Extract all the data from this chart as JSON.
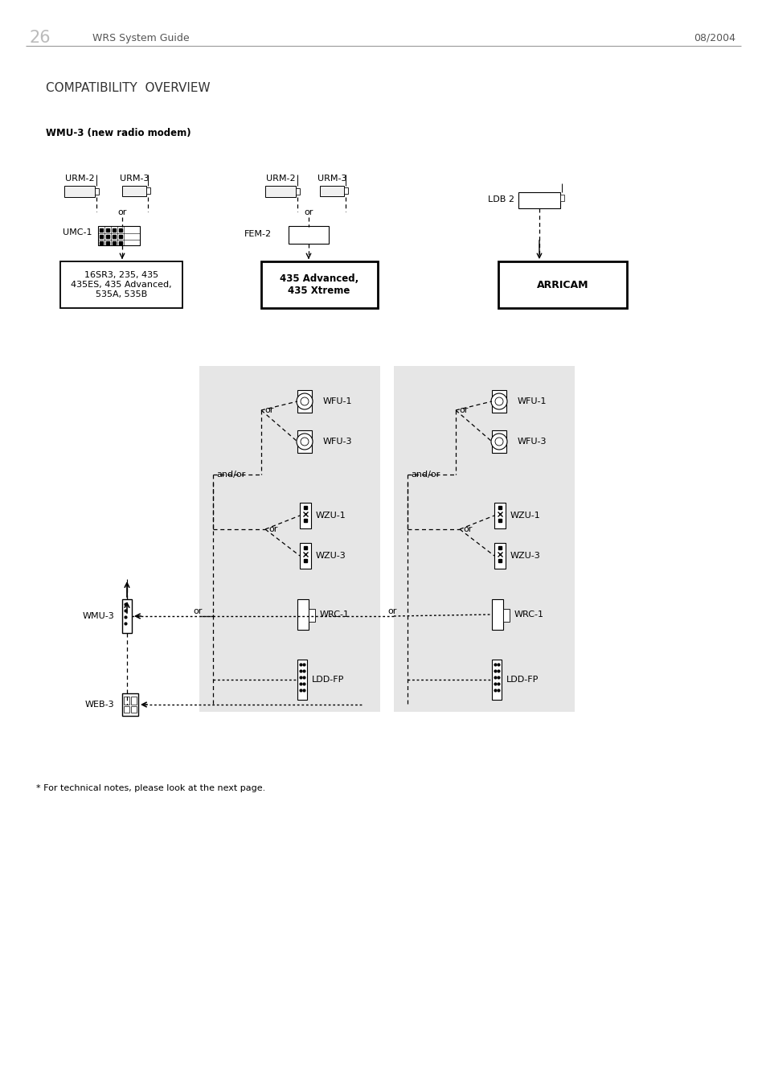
{
  "page_num": "26",
  "header_left": "WRS System Guide",
  "header_right": "08/2004",
  "title": "COMPATIBILITY  OVERVIEW",
  "subtitle": "WMU-3 (new radio modem)",
  "footer_note": "* For technical notes, please look at the next page.",
  "bg_color": "#ffffff",
  "gray_box_color": "#e6e6e6",
  "group1_camera": "16SR3, 235, 435\n435ES, 435 Advanced,\n535A, 535B",
  "group2_camera": "435 Advanced,\n435 Xtreme",
  "group3_camera": "ARRICAM",
  "wmu3_label": "WMU-3",
  "web3_label": "WEB-3",
  "lp_wfu1": "WFU-1",
  "lp_wfu3": "WFU-3",
  "lp_wzu1": "WZU-1",
  "lp_wzu3": "WZU-3",
  "lp_wrc1": "WRC-1",
  "lp_ldd": "LDD-FP",
  "rp_wfu1": "WFU-1",
  "rp_wfu3": "WFU-3",
  "rp_wzu1": "WZU-1",
  "rp_wzu3": "WZU-3",
  "rp_wrc1": "WRC-1",
  "rp_ldd": "LDD-FP"
}
